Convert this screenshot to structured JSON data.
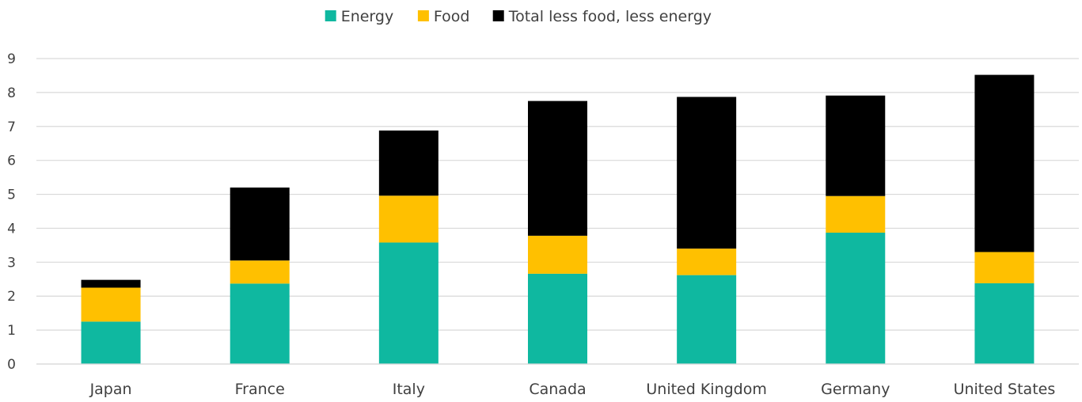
{
  "chart_data": {
    "type": "bar",
    "stacked": true,
    "categories": [
      "Japan",
      "France",
      "Italy",
      "Canada",
      "United Kingdom",
      "Germany",
      "United States"
    ],
    "series": [
      {
        "name": "Energy",
        "color": "#0fb8a0",
        "values": [
          1.25,
          2.37,
          3.58,
          2.66,
          2.62,
          3.87,
          2.38
        ]
      },
      {
        "name": "Food",
        "color": "#ffc000",
        "values": [
          1.0,
          0.68,
          1.38,
          1.12,
          0.78,
          1.08,
          0.92
        ]
      },
      {
        "name": "Total less food, less energy",
        "color": "#000000",
        "values": [
          0.23,
          2.15,
          1.92,
          3.97,
          4.47,
          2.96,
          5.22
        ]
      }
    ],
    "ylim": [
      0,
      9
    ],
    "yticks": [
      0,
      1,
      2,
      3,
      4,
      5,
      6,
      7,
      8,
      9
    ],
    "grid": true,
    "legend_position": "top-center",
    "title": "",
    "xlabel": "",
    "ylabel": ""
  }
}
